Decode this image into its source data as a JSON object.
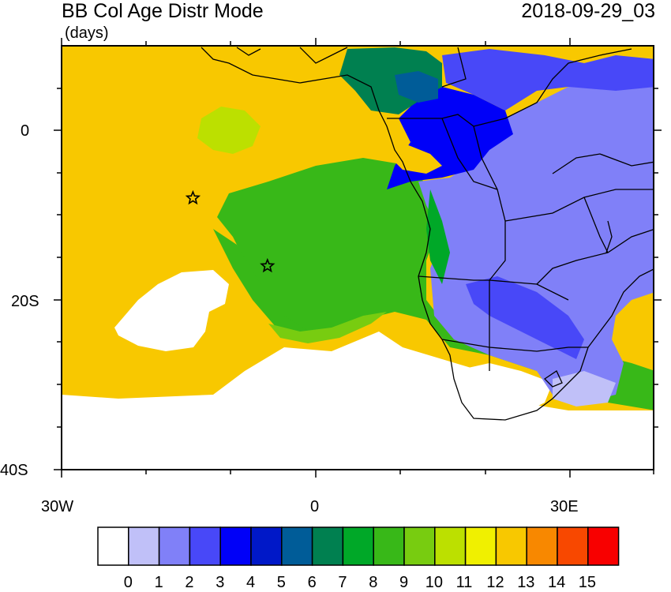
{
  "header": {
    "title": "BB Col Age Distr Mode",
    "units": "(days)",
    "timestamp": "2018-09-29_03"
  },
  "map": {
    "lat_ticks": [
      "0",
      "20S",
      "40S"
    ],
    "lon_ticks": [
      "30W",
      "0",
      "30E"
    ],
    "markers": [
      {
        "symbol": "star",
        "lon": -14.5,
        "lat": -8
      },
      {
        "symbol": "star",
        "lon": -5.7,
        "lat": -16
      }
    ]
  },
  "colorbar": {
    "tick_labels": [
      "0",
      "1",
      "2",
      "3",
      "4",
      "5",
      "6",
      "7",
      "8",
      "9",
      "10",
      "11",
      "12",
      "13",
      "14",
      "15"
    ],
    "colors": [
      "#ffffff",
      "#c0c0f8",
      "#8080f8",
      "#4848f8",
      "#0000f8",
      "#0018c8",
      "#005c98",
      "#008050",
      "#00a828",
      "#38b818",
      "#78cc10",
      "#bce000",
      "#f0f000",
      "#f8c800",
      "#f88800",
      "#f84800",
      "#f80000"
    ]
  }
}
